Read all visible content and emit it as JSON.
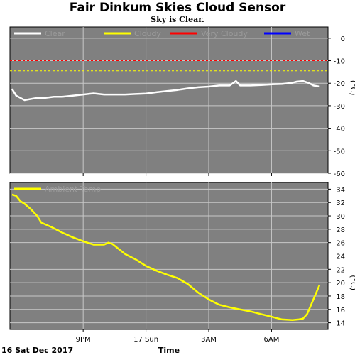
{
  "header": {
    "title": "Fair Dinkum Skies Cloud Sensor",
    "subtitle": "Sky is Clear."
  },
  "footer": {
    "date_label": "16 Sat Dec 2017",
    "xlabel": "Time"
  },
  "colors": {
    "panel_bg": "#808080",
    "grid": "#c8c8c8",
    "clear": "#ffffff",
    "cloudy": "#ffff00",
    "very_cloudy": "#ff0000",
    "wet": "#0000ff",
    "ambient": "#ffff00"
  },
  "chart_data": [
    {
      "type": "line",
      "ylabel": "(°C)",
      "ylim": [
        -60,
        5
      ],
      "yticks": [
        0,
        -10,
        -20,
        -30,
        -40,
        -50,
        -60
      ],
      "xlim": [
        17.5,
        32.7
      ],
      "xticks": [
        {
          "value": 21,
          "label": "9PM"
        },
        {
          "value": 24,
          "label": "17 Sun"
        },
        {
          "value": 27,
          "label": "3AM"
        },
        {
          "value": 30,
          "label": "6AM"
        }
      ],
      "grid": true,
      "legend_position": "top-left",
      "thresholds": [
        {
          "name": "Very Cloudy",
          "value": -10,
          "color": "#ff0000",
          "style": "dashed"
        },
        {
          "name": "Cloudy",
          "value": -14.5,
          "color": "#ffff00",
          "style": "dashed"
        }
      ],
      "series": [
        {
          "name": "Clear",
          "color": "#ffffff",
          "show_line": true,
          "x": [
            17.6,
            17.8,
            18.0,
            18.2,
            18.5,
            18.8,
            19.2,
            19.6,
            20.0,
            20.5,
            21.0,
            21.5,
            22.0,
            22.5,
            23.0,
            23.5,
            24.0,
            24.5,
            25.0,
            25.5,
            26.0,
            26.5,
            27.0,
            27.5,
            28.0,
            28.3,
            28.5,
            28.8,
            29.0,
            29.5,
            30.0,
            30.5,
            31.0,
            31.2,
            31.5,
            31.8,
            32.0,
            32.3
          ],
          "y": [
            -22.5,
            -25.5,
            -26.5,
            -27.5,
            -27.0,
            -26.5,
            -26.5,
            -26.0,
            -26.0,
            -25.5,
            -25.0,
            -24.5,
            -25.0,
            -25.0,
            -25.0,
            -24.8,
            -24.6,
            -24.0,
            -23.5,
            -23.0,
            -22.3,
            -21.8,
            -21.5,
            -21.0,
            -21.0,
            -19.0,
            -21.0,
            -21.0,
            -21.0,
            -20.8,
            -20.5,
            -20.3,
            -19.8,
            -19.3,
            -19.0,
            -20.0,
            -21.0,
            -21.5
          ]
        },
        {
          "name": "Cloudy",
          "color": "#ffff00",
          "show_line": false,
          "x": [],
          "y": []
        },
        {
          "name": "Very Cloudy",
          "color": "#ff0000",
          "show_line": false,
          "x": [],
          "y": []
        },
        {
          "name": "Wet",
          "color": "#0000ff",
          "show_line": false,
          "x": [],
          "y": []
        }
      ]
    },
    {
      "type": "line",
      "ylabel": "(°C)",
      "ylim": [
        13,
        35
      ],
      "yticks": [
        14,
        16,
        18,
        20,
        22,
        24,
        26,
        28,
        30,
        32,
        34
      ],
      "xlim": [
        17.5,
        32.7
      ],
      "xticks": [
        {
          "value": 21,
          "label": "9PM"
        },
        {
          "value": 24,
          "label": "17 Sun"
        },
        {
          "value": 27,
          "label": "3AM"
        },
        {
          "value": 30,
          "label": "6AM"
        }
      ],
      "grid": true,
      "legend_position": "top-left",
      "series": [
        {
          "name": "Ambient Temp",
          "color": "#ffff00",
          "x": [
            17.6,
            17.8,
            18.0,
            18.2,
            18.5,
            18.8,
            19.0,
            19.5,
            20.0,
            20.5,
            21.0,
            21.5,
            22.0,
            22.2,
            22.4,
            22.6,
            22.8,
            23.0,
            23.5,
            24.0,
            24.5,
            25.0,
            25.5,
            26.0,
            26.5,
            27.0,
            27.5,
            28.0,
            28.5,
            29.0,
            29.5,
            30.0,
            30.5,
            31.0,
            31.3,
            31.5,
            31.7,
            32.0,
            32.3
          ],
          "y": [
            33.2,
            33.0,
            32.2,
            31.8,
            31.0,
            30.0,
            29.0,
            28.3,
            27.5,
            26.8,
            26.2,
            25.7,
            25.7,
            26.0,
            25.8,
            25.3,
            24.8,
            24.3,
            23.5,
            22.5,
            21.8,
            21.2,
            20.7,
            19.8,
            18.5,
            17.5,
            16.7,
            16.3,
            16.0,
            15.7,
            15.3,
            14.9,
            14.5,
            14.4,
            14.5,
            14.6,
            15.3,
            17.5,
            19.7
          ]
        }
      ]
    }
  ]
}
